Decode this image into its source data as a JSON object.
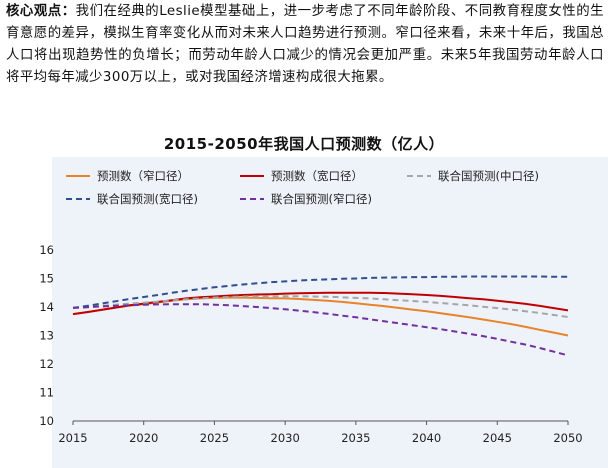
{
  "summary": {
    "lead": "核心观点：",
    "text": "我们在经典的Leslie模型基础上，进一步考虑了不同年龄阶段、不同教育程度女性的生育意愿的差异，模拟生育率变化从而对未来人口趋势进行预测。窄口径来看，未来十年后，我国总人口将出现趋势性的负增长；而劳动年龄人口减少的情况会更加严重。未来5年我国劳动年龄人口将平均每年减少300万以上，或对我国经济增速构成很大拖累。"
  },
  "chart_data": {
    "type": "line",
    "title": "2015-2050年我国人口预测数（亿人）",
    "xlabel": "",
    "ylabel": "",
    "xlim": [
      2015,
      2050
    ],
    "ylim": [
      10,
      16
    ],
    "x_ticks": [
      2015,
      2020,
      2025,
      2030,
      2035,
      2040,
      2045,
      2050
    ],
    "y_ticks": [
      10,
      11,
      12,
      13,
      14,
      15,
      16
    ],
    "grid": false,
    "legend_position": "top",
    "series": [
      {
        "name": "预测数（窄口径）",
        "color": "#e8832a",
        "dash": "solid",
        "x": [
          2015,
          2016,
          2017,
          2018,
          2019,
          2020,
          2021,
          2022,
          2023,
          2024,
          2025,
          2026,
          2027,
          2028,
          2029,
          2030,
          2031,
          2032,
          2033,
          2034,
          2035,
          2036,
          2037,
          2038,
          2039,
          2040,
          2041,
          2042,
          2043,
          2044,
          2045,
          2046,
          2047,
          2048,
          2049,
          2050
        ],
        "y": [
          13.75,
          13.82,
          13.9,
          13.98,
          14.05,
          14.1,
          14.16,
          14.22,
          14.27,
          14.3,
          14.32,
          14.33,
          14.33,
          14.32,
          14.31,
          14.3,
          14.28,
          14.25,
          14.22,
          14.18,
          14.13,
          14.08,
          14.03,
          13.97,
          13.91,
          13.85,
          13.78,
          13.71,
          13.64,
          13.56,
          13.48,
          13.4,
          13.3,
          13.2,
          13.1,
          13.0
        ]
      },
      {
        "name": "预测数（宽口径）",
        "color": "#c00000",
        "dash": "solid",
        "x": [
          2015,
          2016,
          2017,
          2018,
          2019,
          2020,
          2021,
          2022,
          2023,
          2024,
          2025,
          2026,
          2027,
          2028,
          2029,
          2030,
          2031,
          2032,
          2033,
          2034,
          2035,
          2036,
          2037,
          2038,
          2039,
          2040,
          2041,
          2042,
          2043,
          2044,
          2045,
          2046,
          2047,
          2048,
          2049,
          2050
        ],
        "y": [
          13.75,
          13.82,
          13.9,
          13.98,
          14.06,
          14.12,
          14.18,
          14.24,
          14.3,
          14.34,
          14.37,
          14.4,
          14.42,
          14.44,
          14.45,
          14.47,
          14.48,
          14.49,
          14.5,
          14.5,
          14.5,
          14.5,
          14.49,
          14.47,
          14.45,
          14.42,
          14.39,
          14.35,
          14.31,
          14.27,
          14.22,
          14.17,
          14.11,
          14.04,
          13.96,
          13.88
        ]
      },
      {
        "name": "联合国预测(中口径)",
        "color": "#a6a6a6",
        "dash": "dashed",
        "x": [
          2015,
          2016,
          2017,
          2018,
          2019,
          2020,
          2021,
          2022,
          2023,
          2024,
          2025,
          2026,
          2027,
          2028,
          2029,
          2030,
          2031,
          2032,
          2033,
          2034,
          2035,
          2036,
          2037,
          2038,
          2039,
          2040,
          2041,
          2042,
          2043,
          2044,
          2045,
          2046,
          2047,
          2048,
          2049,
          2050
        ],
        "y": [
          13.97,
          14.0,
          14.04,
          14.08,
          14.12,
          14.15,
          14.19,
          14.23,
          14.27,
          14.3,
          14.33,
          14.35,
          14.37,
          14.38,
          14.38,
          14.38,
          14.38,
          14.37,
          14.36,
          14.34,
          14.32,
          14.3,
          14.27,
          14.24,
          14.21,
          14.18,
          14.14,
          14.1,
          14.06,
          14.01,
          13.96,
          13.91,
          13.85,
          13.79,
          13.72,
          13.65
        ]
      },
      {
        "name": "联合国预测(宽口径)",
        "color": "#2f4f8f",
        "dash": "dashed",
        "x": [
          2015,
          2016,
          2017,
          2018,
          2019,
          2020,
          2021,
          2022,
          2023,
          2024,
          2025,
          2026,
          2027,
          2028,
          2029,
          2030,
          2031,
          2032,
          2033,
          2034,
          2035,
          2036,
          2037,
          2038,
          2039,
          2040,
          2041,
          2042,
          2043,
          2044,
          2045,
          2046,
          2047,
          2048,
          2049,
          2050
        ],
        "y": [
          13.97,
          14.04,
          14.12,
          14.2,
          14.28,
          14.35,
          14.42,
          14.5,
          14.57,
          14.63,
          14.69,
          14.74,
          14.79,
          14.83,
          14.87,
          14.9,
          14.93,
          14.95,
          14.97,
          14.99,
          15.0,
          15.02,
          15.03,
          15.04,
          15.05,
          15.05,
          15.06,
          15.06,
          15.07,
          15.07,
          15.07,
          15.07,
          15.07,
          15.07,
          15.06,
          15.06
        ]
      },
      {
        "name": "联合国预测(窄口径)",
        "color": "#7030a0",
        "dash": "dashed",
        "x": [
          2015,
          2016,
          2017,
          2018,
          2019,
          2020,
          2021,
          2022,
          2023,
          2024,
          2025,
          2026,
          2027,
          2028,
          2029,
          2030,
          2031,
          2032,
          2033,
          2034,
          2035,
          2036,
          2037,
          2038,
          2039,
          2040,
          2041,
          2042,
          2043,
          2044,
          2045,
          2046,
          2047,
          2048,
          2049,
          2050
        ],
        "y": [
          13.97,
          13.99,
          14.02,
          14.04,
          14.06,
          14.08,
          14.09,
          14.1,
          14.1,
          14.1,
          14.08,
          14.06,
          14.03,
          14.0,
          13.96,
          13.92,
          13.87,
          13.82,
          13.76,
          13.7,
          13.64,
          13.57,
          13.5,
          13.43,
          13.36,
          13.29,
          13.22,
          13.14,
          13.06,
          12.98,
          12.88,
          12.78,
          12.68,
          12.56,
          12.43,
          12.3
        ]
      }
    ]
  }
}
